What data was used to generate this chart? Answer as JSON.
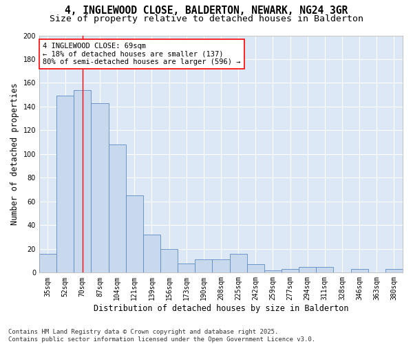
{
  "title": "4, INGLEWOOD CLOSE, BALDERTON, NEWARK, NG24 3GR",
  "subtitle": "Size of property relative to detached houses in Balderton",
  "xlabel": "Distribution of detached houses by size in Balderton",
  "ylabel": "Number of detached properties",
  "categories": [
    "35sqm",
    "52sqm",
    "70sqm",
    "87sqm",
    "104sqm",
    "121sqm",
    "139sqm",
    "156sqm",
    "173sqm",
    "190sqm",
    "208sqm",
    "225sqm",
    "242sqm",
    "259sqm",
    "277sqm",
    "294sqm",
    "311sqm",
    "328sqm",
    "346sqm",
    "363sqm",
    "380sqm"
  ],
  "values": [
    16,
    149,
    154,
    143,
    108,
    65,
    32,
    20,
    8,
    11,
    11,
    16,
    7,
    2,
    3,
    5,
    5,
    0,
    3,
    0,
    3
  ],
  "bar_color": "#c8d9ee",
  "bar_edge_color": "#5b8ac5",
  "background_color": "#dce8f5",
  "grid_color": "#ffffff",
  "property_label": "4 INGLEWOOD CLOSE: 69sqm",
  "annotation_line1": "← 18% of detached houses are smaller (137)",
  "annotation_line2": "80% of semi-detached houses are larger (596) →",
  "vline_position": 2,
  "ylim": [
    0,
    200
  ],
  "yticks": [
    0,
    20,
    40,
    60,
    80,
    100,
    120,
    140,
    160,
    180,
    200
  ],
  "footer_line1": "Contains HM Land Registry data © Crown copyright and database right 2025.",
  "footer_line2": "Contains public sector information licensed under the Open Government Licence v3.0.",
  "title_fontsize": 10.5,
  "subtitle_fontsize": 9.5,
  "axis_label_fontsize": 8.5,
  "tick_fontsize": 7,
  "annotation_fontsize": 7.5,
  "footer_fontsize": 6.5
}
